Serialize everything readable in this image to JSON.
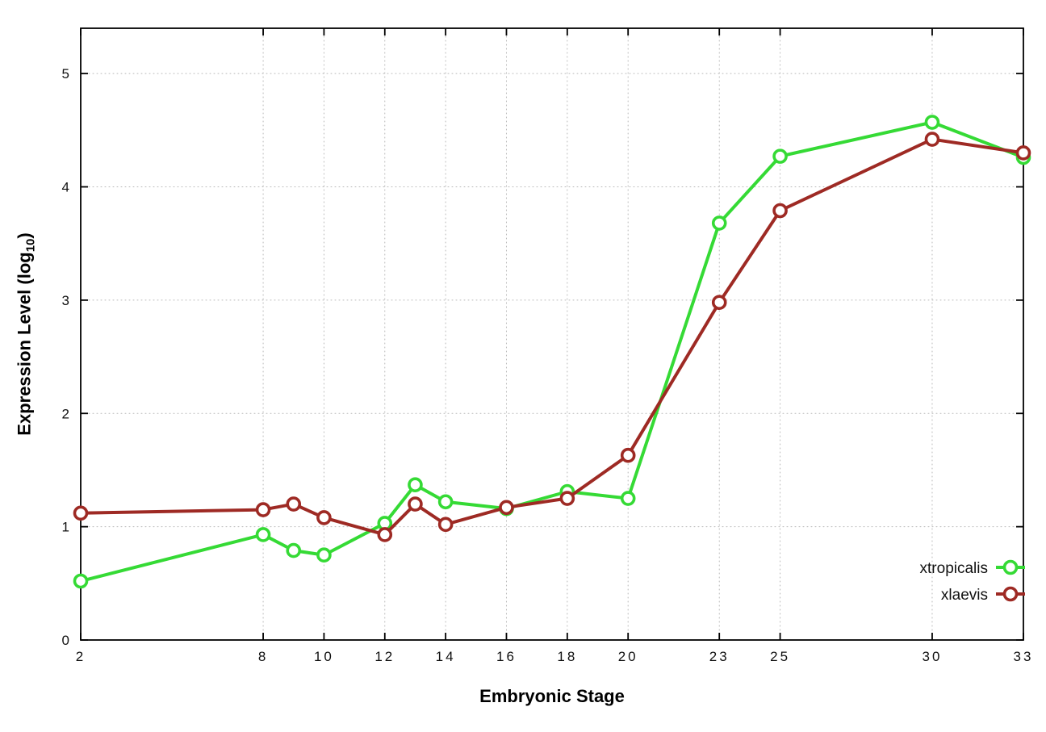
{
  "chart_data": {
    "type": "line",
    "title": "",
    "xlabel": "Embryonic Stage",
    "ylabel_prefix": "Expression Level (log",
    "ylabel_sub": "10",
    "ylabel_suffix": ")",
    "xlim": [
      2,
      33
    ],
    "ylim": [
      0,
      5.4
    ],
    "x_ticks": [
      2,
      8,
      10,
      12,
      14,
      16,
      18,
      20,
      23,
      25,
      30,
      33
    ],
    "y_ticks": [
      0,
      1,
      2,
      3,
      4,
      5
    ],
    "grid": true,
    "legend_position": "bottom-right",
    "x": [
      2,
      8,
      9,
      10,
      12,
      13,
      14,
      16,
      18,
      20,
      23,
      25,
      30,
      33
    ],
    "series": [
      {
        "name": "xtropicalis",
        "color": "#35da35",
        "values": [
          0.52,
          0.93,
          0.79,
          0.75,
          1.03,
          1.37,
          1.22,
          1.16,
          1.31,
          1.25,
          3.68,
          4.27,
          4.57,
          4.26
        ]
      },
      {
        "name": "xlaevis",
        "color": "#9e2a24",
        "values": [
          1.12,
          1.15,
          1.2,
          1.08,
          0.93,
          1.2,
          1.02,
          1.17,
          1.25,
          1.63,
          2.98,
          3.79,
          4.42,
          4.3
        ]
      }
    ]
  }
}
